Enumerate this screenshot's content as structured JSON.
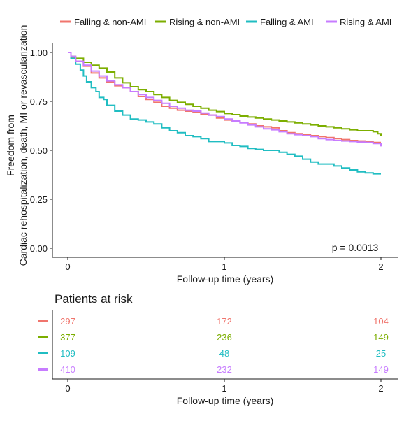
{
  "chart_data": {
    "type": "line",
    "step": true,
    "xlabel": "Follow-up time (years)",
    "ylabel_lines": [
      "Freedom from",
      "Cardiac rehospitalization, death, MI or revascularization"
    ],
    "xlim": [
      0,
      2
    ],
    "ylim": [
      0,
      1
    ],
    "x_ticks": [
      0,
      1,
      2
    ],
    "x_tick_labels": [
      "0",
      "1",
      "2"
    ],
    "y_ticks": [
      0,
      0.25,
      0.5,
      0.75,
      1.0
    ],
    "y_tick_labels": [
      "0.00",
      "0.25",
      "0.50",
      "0.75",
      "1.00"
    ],
    "grid": false,
    "legend_position": "top",
    "annotation": "p = 0.0013",
    "series": [
      {
        "name": "Falling & non-AMI",
        "color": "#F0756D",
        "points": [
          [
            0,
            1.0
          ],
          [
            0.02,
            0.975
          ],
          [
            0.05,
            0.955
          ],
          [
            0.1,
            0.93
          ],
          [
            0.15,
            0.895
          ],
          [
            0.2,
            0.87
          ],
          [
            0.25,
            0.85
          ],
          [
            0.3,
            0.83
          ],
          [
            0.35,
            0.82
          ],
          [
            0.4,
            0.8
          ],
          [
            0.45,
            0.775
          ],
          [
            0.5,
            0.76
          ],
          [
            0.55,
            0.745
          ],
          [
            0.6,
            0.725
          ],
          [
            0.65,
            0.715
          ],
          [
            0.7,
            0.705
          ],
          [
            0.75,
            0.7
          ],
          [
            0.8,
            0.695
          ],
          [
            0.85,
            0.685
          ],
          [
            0.9,
            0.68
          ],
          [
            0.95,
            0.665
          ],
          [
            1.0,
            0.655
          ],
          [
            1.05,
            0.648
          ],
          [
            1.1,
            0.642
          ],
          [
            1.15,
            0.635
          ],
          [
            1.2,
            0.625
          ],
          [
            1.25,
            0.62
          ],
          [
            1.3,
            0.615
          ],
          [
            1.35,
            0.6
          ],
          [
            1.4,
            0.59
          ],
          [
            1.45,
            0.585
          ],
          [
            1.5,
            0.58
          ],
          [
            1.55,
            0.575
          ],
          [
            1.6,
            0.57
          ],
          [
            1.65,
            0.565
          ],
          [
            1.7,
            0.56
          ],
          [
            1.75,
            0.555
          ],
          [
            1.8,
            0.55
          ],
          [
            1.85,
            0.548
          ],
          [
            1.9,
            0.545
          ],
          [
            1.95,
            0.54
          ],
          [
            2.0,
            0.54
          ]
        ]
      },
      {
        "name": "Rising & non-AMI",
        "color": "#7CAE00",
        "points": [
          [
            0,
            1.0
          ],
          [
            0.02,
            0.98
          ],
          [
            0.05,
            0.97
          ],
          [
            0.1,
            0.95
          ],
          [
            0.15,
            0.935
          ],
          [
            0.2,
            0.92
          ],
          [
            0.25,
            0.9
          ],
          [
            0.3,
            0.87
          ],
          [
            0.35,
            0.845
          ],
          [
            0.4,
            0.825
          ],
          [
            0.45,
            0.81
          ],
          [
            0.5,
            0.8
          ],
          [
            0.55,
            0.785
          ],
          [
            0.6,
            0.77
          ],
          [
            0.65,
            0.755
          ],
          [
            0.7,
            0.745
          ],
          [
            0.75,
            0.735
          ],
          [
            0.8,
            0.725
          ],
          [
            0.85,
            0.715
          ],
          [
            0.9,
            0.705
          ],
          [
            0.95,
            0.698
          ],
          [
            1.0,
            0.688
          ],
          [
            1.05,
            0.682
          ],
          [
            1.1,
            0.675
          ],
          [
            1.15,
            0.67
          ],
          [
            1.2,
            0.665
          ],
          [
            1.25,
            0.66
          ],
          [
            1.3,
            0.655
          ],
          [
            1.35,
            0.65
          ],
          [
            1.4,
            0.645
          ],
          [
            1.45,
            0.64
          ],
          [
            1.5,
            0.635
          ],
          [
            1.55,
            0.63
          ],
          [
            1.6,
            0.625
          ],
          [
            1.65,
            0.62
          ],
          [
            1.7,
            0.615
          ],
          [
            1.75,
            0.61
          ],
          [
            1.8,
            0.605
          ],
          [
            1.85,
            0.6
          ],
          [
            1.9,
            0.6
          ],
          [
            1.95,
            0.595
          ],
          [
            1.98,
            0.585
          ],
          [
            2.0,
            0.575
          ]
        ]
      },
      {
        "name": "Falling & AMI",
        "color": "#20BDC2",
        "points": [
          [
            0,
            1.0
          ],
          [
            0.02,
            0.97
          ],
          [
            0.05,
            0.94
          ],
          [
            0.08,
            0.91
          ],
          [
            0.1,
            0.88
          ],
          [
            0.12,
            0.85
          ],
          [
            0.15,
            0.82
          ],
          [
            0.18,
            0.8
          ],
          [
            0.2,
            0.77
          ],
          [
            0.23,
            0.76
          ],
          [
            0.25,
            0.73
          ],
          [
            0.3,
            0.7
          ],
          [
            0.35,
            0.68
          ],
          [
            0.4,
            0.66
          ],
          [
            0.45,
            0.655
          ],
          [
            0.5,
            0.645
          ],
          [
            0.55,
            0.635
          ],
          [
            0.6,
            0.615
          ],
          [
            0.65,
            0.6
          ],
          [
            0.7,
            0.59
          ],
          [
            0.75,
            0.575
          ],
          [
            0.8,
            0.57
          ],
          [
            0.85,
            0.56
          ],
          [
            0.9,
            0.545
          ],
          [
            0.95,
            0.545
          ],
          [
            1.0,
            0.538
          ],
          [
            1.05,
            0.525
          ],
          [
            1.1,
            0.52
          ],
          [
            1.15,
            0.51
          ],
          [
            1.2,
            0.505
          ],
          [
            1.25,
            0.5
          ],
          [
            1.3,
            0.5
          ],
          [
            1.35,
            0.49
          ],
          [
            1.4,
            0.48
          ],
          [
            1.45,
            0.47
          ],
          [
            1.5,
            0.455
          ],
          [
            1.55,
            0.44
          ],
          [
            1.6,
            0.43
          ],
          [
            1.65,
            0.43
          ],
          [
            1.7,
            0.42
          ],
          [
            1.75,
            0.41
          ],
          [
            1.8,
            0.4
          ],
          [
            1.85,
            0.39
          ],
          [
            1.9,
            0.385
          ],
          [
            1.95,
            0.38
          ],
          [
            2.0,
            0.38
          ]
        ]
      },
      {
        "name": "Rising & AMI",
        "color": "#C77CFF",
        "points": [
          [
            0,
            1.0
          ],
          [
            0.02,
            0.98
          ],
          [
            0.05,
            0.955
          ],
          [
            0.1,
            0.935
          ],
          [
            0.15,
            0.905
          ],
          [
            0.2,
            0.88
          ],
          [
            0.25,
            0.855
          ],
          [
            0.3,
            0.835
          ],
          [
            0.35,
            0.82
          ],
          [
            0.4,
            0.8
          ],
          [
            0.45,
            0.785
          ],
          [
            0.5,
            0.77
          ],
          [
            0.55,
            0.755
          ],
          [
            0.6,
            0.74
          ],
          [
            0.65,
            0.725
          ],
          [
            0.7,
            0.715
          ],
          [
            0.75,
            0.705
          ],
          [
            0.8,
            0.7
          ],
          [
            0.85,
            0.69
          ],
          [
            0.9,
            0.68
          ],
          [
            0.95,
            0.672
          ],
          [
            1.0,
            0.66
          ],
          [
            1.05,
            0.65
          ],
          [
            1.1,
            0.64
          ],
          [
            1.15,
            0.63
          ],
          [
            1.2,
            0.62
          ],
          [
            1.25,
            0.61
          ],
          [
            1.3,
            0.605
          ],
          [
            1.35,
            0.595
          ],
          [
            1.4,
            0.585
          ],
          [
            1.45,
            0.58
          ],
          [
            1.5,
            0.575
          ],
          [
            1.55,
            0.57
          ],
          [
            1.6,
            0.56
          ],
          [
            1.65,
            0.555
          ],
          [
            1.7,
            0.55
          ],
          [
            1.75,
            0.548
          ],
          [
            1.8,
            0.545
          ],
          [
            1.85,
            0.542
          ],
          [
            1.9,
            0.54
          ],
          [
            1.95,
            0.535
          ],
          [
            2.0,
            0.52
          ]
        ]
      }
    ],
    "risk_table": {
      "title": "Patients at risk",
      "xlabel": "Follow-up time (years)",
      "rows": [
        {
          "name": "Falling & non-AMI",
          "color": "#F0756D",
          "values": [
            "297",
            "172",
            "104"
          ]
        },
        {
          "name": "Rising & non-AMI",
          "color": "#7CAE00",
          "values": [
            "377",
            "236",
            "149"
          ]
        },
        {
          "name": "Falling & AMI",
          "color": "#20BDC2",
          "values": [
            "109",
            "48",
            "25"
          ]
        },
        {
          "name": "Rising & AMI",
          "color": "#C77CFF",
          "values": [
            "410",
            "232",
            "149"
          ]
        }
      ]
    }
  }
}
